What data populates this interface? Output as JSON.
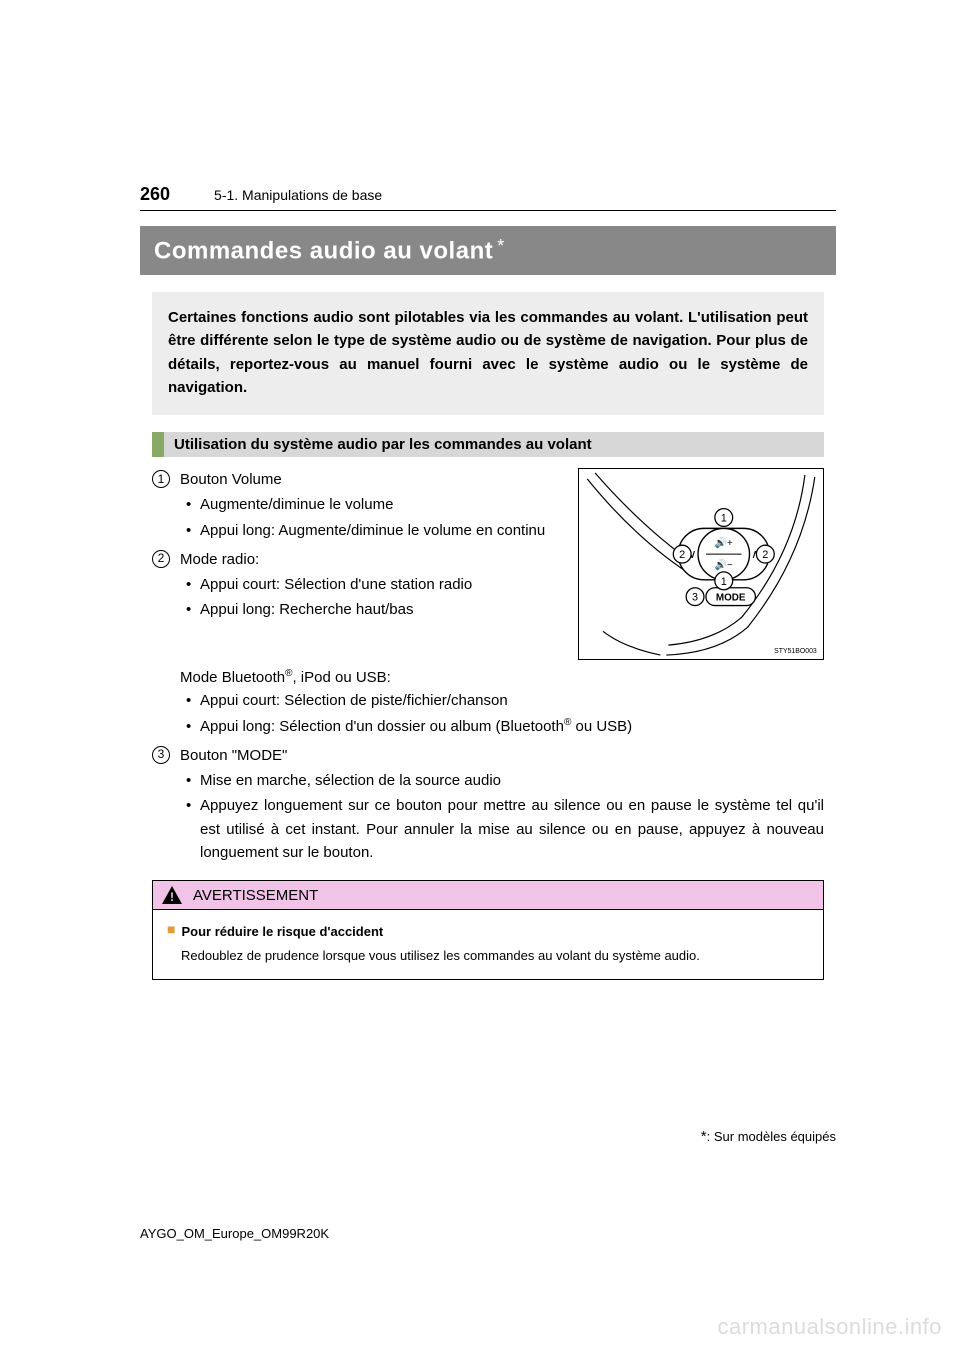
{
  "page_number": "260",
  "breadcrumb": "5-1. Manipulations de base",
  "title": "Commandes audio au volant",
  "title_asterisk": "*",
  "intro": "Certaines fonctions audio sont pilotables via les commandes au volant. L'utilisation peut être différente selon le type de système audio ou de système de navigation. Pour plus de détails, reportez-vous au manuel fourni avec le système audio ou le système de navigation.",
  "section_heading": "Utilisation du système audio par les commandes au volant",
  "items": {
    "1": {
      "head": "Bouton Volume",
      "bullets": [
        "Augmente/diminue le volume",
        "Appui long: Augmente/diminue le volume en continu"
      ],
      "bullets_justify_idx": [
        1
      ]
    },
    "2": {
      "head": "Mode radio:",
      "bullets": [
        "Appui court: Sélection d'une station radio",
        "Appui long: Recherche haut/bas"
      ],
      "bullets_justify_idx": [
        0
      ],
      "subhead_html": "Mode Bluetooth<sup>®</sup>, iPod ou USB:",
      "bullets2": [
        "Appui court: Sélection de piste/fichier/chanson",
        "Appui long: Sélection d'un dossier ou album (Bluetooth<sup>®</sup> ou USB)"
      ]
    },
    "3": {
      "head": "Bouton \"MODE\"",
      "bullets": [
        "Mise en marche, sélection de la source audio",
        "Appuyez longuement sur ce bouton pour mettre au silence ou en pause le système tel qu'il est utilisé à cet instant. Pour annuler la mise au silence ou en pause, appuyez à nouveau longuement sur le bouton."
      ],
      "bullets_justify_idx": [
        1
      ]
    }
  },
  "figure": {
    "code": "STY51BO003",
    "callouts": [
      "1",
      "2",
      "2",
      "1",
      "3"
    ],
    "mode_label": "MODE",
    "line_color": "#000000",
    "bg": "#ffffff"
  },
  "warning": {
    "title": "AVERTISSEMENT",
    "sub": "Pour réduire le risque d'accident",
    "text": "Redoublez de prudence lorsque vous utilisez les commandes au volant du système audio.",
    "head_bg": "#f1c3e6",
    "square_color": "#e59a3a"
  },
  "footnote": ": Sur modèles équipés",
  "footnote_star": "*",
  "doc_id": "AYGO_OM_Europe_OM99R20K",
  "watermark": "carmanualsonline.info",
  "colors": {
    "title_bg": "#888888",
    "intro_bg": "#ededed",
    "section_green": "#88aa66",
    "section_grey": "#d7d7d7",
    "text": "#000000",
    "page_bg": "#ffffff",
    "watermark": "#dcdcdc"
  },
  "typography": {
    "page_num_size": 18,
    "breadcrumb_size": 14,
    "title_size": 24,
    "body_size": 15,
    "warn_body_size": 13,
    "footnote_size": 13
  }
}
